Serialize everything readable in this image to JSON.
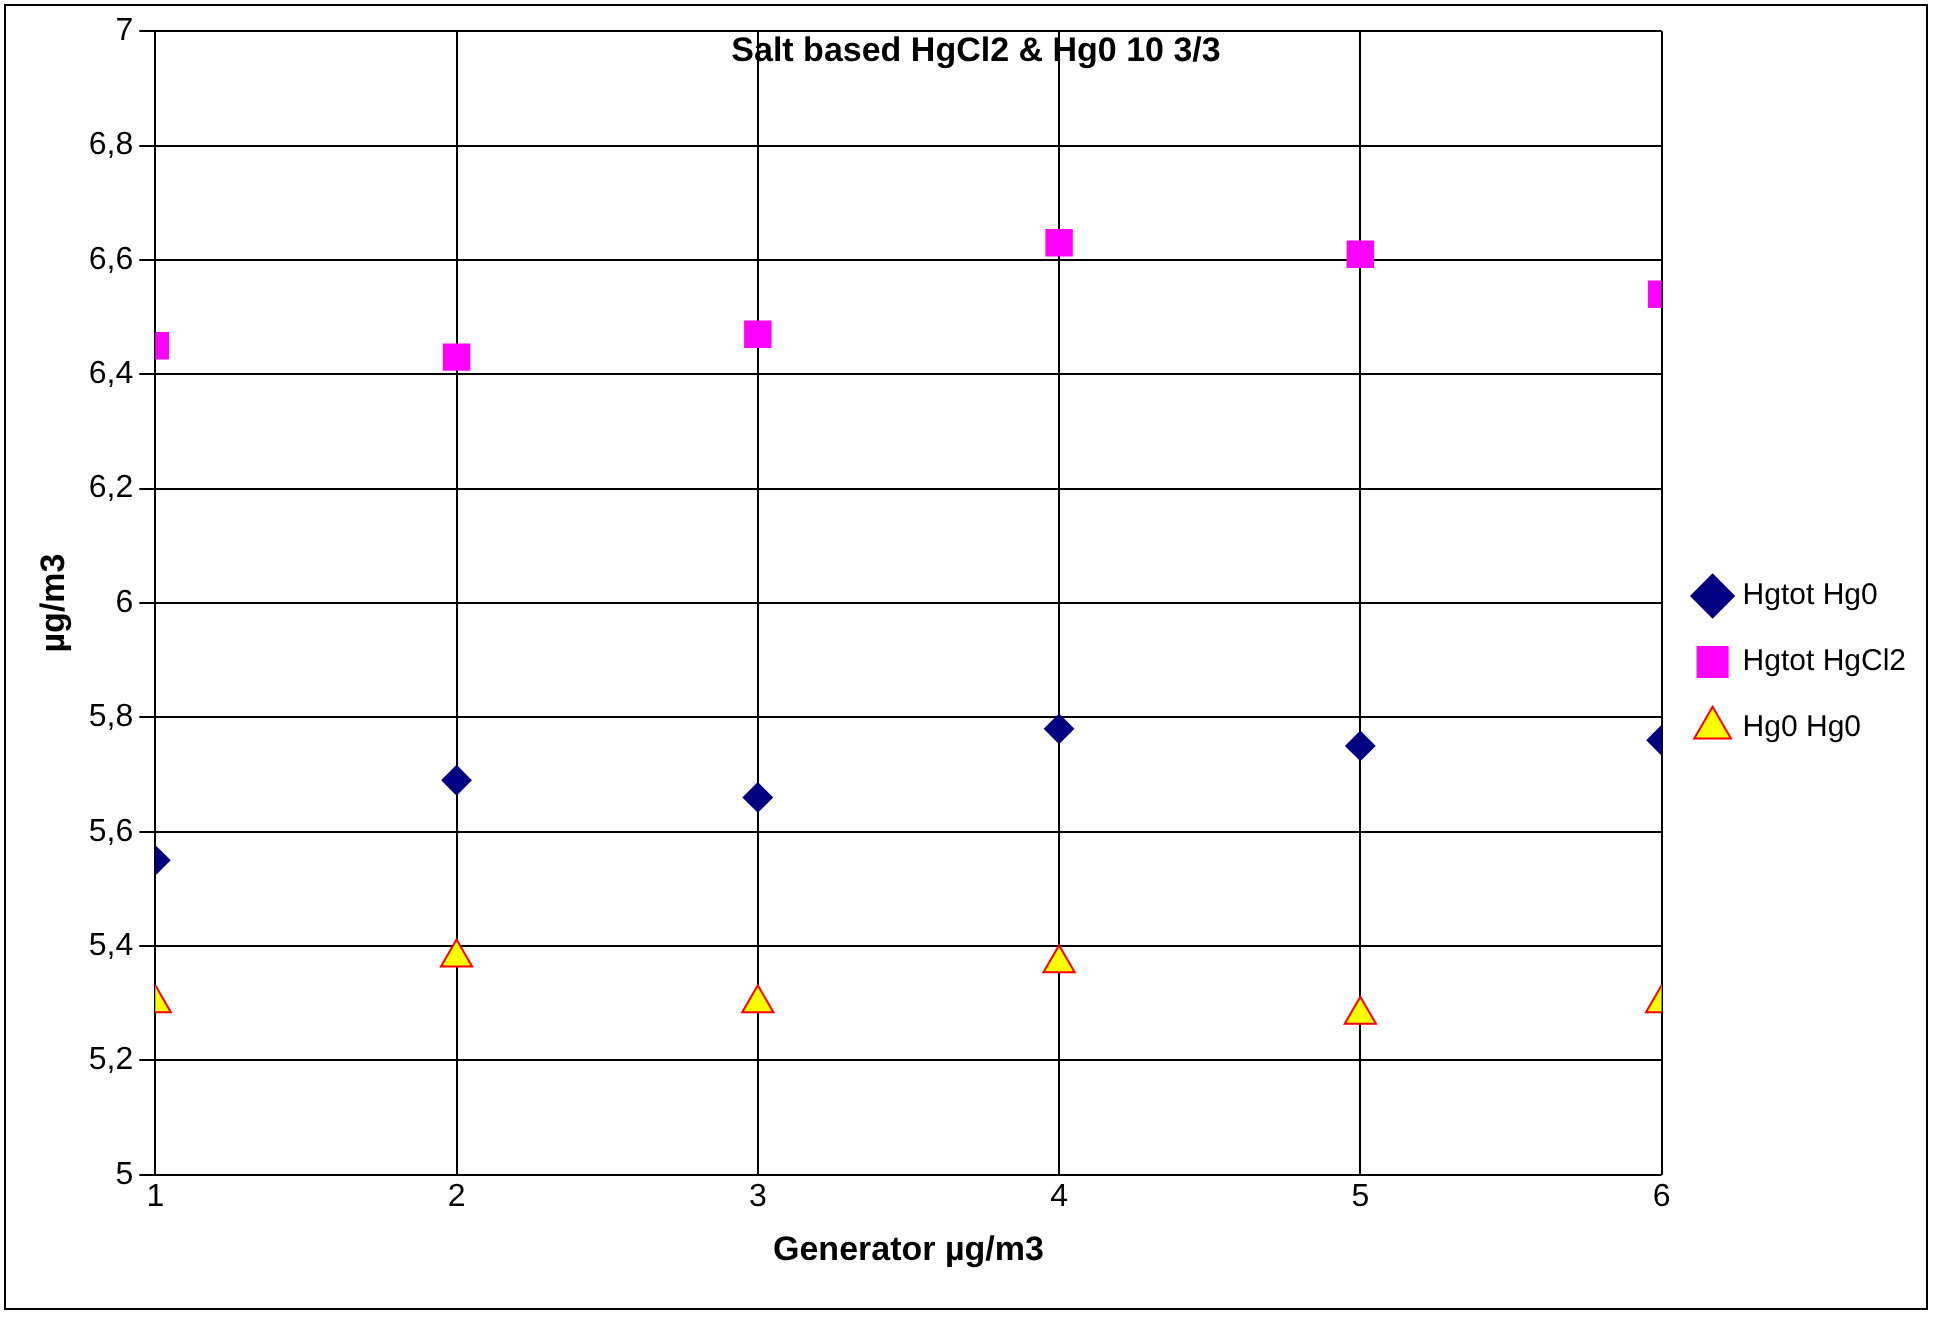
{
  "chart_data": {
    "type": "scatter",
    "title": "Salt based HgCl2 & Hg0 10 3/3",
    "xlabel": "Generator µg/m3",
    "ylabel": "µg/m3",
    "x": [
      1,
      2,
      3,
      4,
      5,
      6
    ],
    "series": [
      {
        "name": "Hgtot Hg0",
        "color": "#000080",
        "marker": "diamond",
        "values": [
          5.55,
          5.69,
          5.66,
          5.78,
          5.75,
          5.76
        ]
      },
      {
        "name": "Hgtot HgCl2",
        "color": "#ff00ff",
        "marker": "square",
        "values": [
          6.45,
          6.43,
          6.47,
          6.63,
          6.61,
          6.54
        ]
      },
      {
        "name": "Hg0 Hg0",
        "color": "#ffff00",
        "marker": "triangle",
        "values": [
          5.3,
          5.38,
          5.3,
          5.37,
          5.28,
          5.3
        ]
      }
    ],
    "xlim": [
      1,
      6
    ],
    "xticks": [
      1,
      2,
      3,
      4,
      5,
      6
    ],
    "ylim": [
      5,
      7
    ],
    "yticks": [
      5,
      {
        "value": 5.2,
        "label": "5,2"
      },
      {
        "value": 5.4,
        "label": "5,4"
      },
      {
        "value": 5.6,
        "label": "5,6"
      },
      {
        "value": 5.8,
        "label": "5,8"
      },
      6,
      {
        "value": 6.2,
        "label": "6,2"
      },
      {
        "value": 6.4,
        "label": "6,4"
      },
      {
        "value": 6.6,
        "label": "6,6"
      },
      {
        "value": 6.8,
        "label": "6,8"
      },
      7
    ],
    "grid": true,
    "legend": "right"
  }
}
